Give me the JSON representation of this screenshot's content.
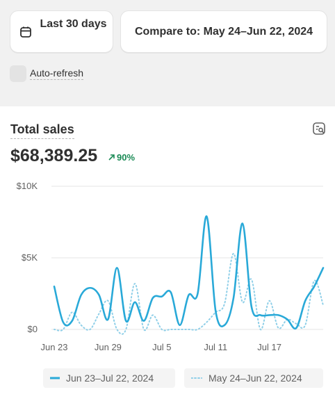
{
  "toolbar": {
    "date_range_label": "Last 30 days",
    "compare_label": "Compare to: May 24–Jun 22, 2024",
    "auto_refresh_label": "Auto-refresh",
    "auto_refresh_checked": false
  },
  "card": {
    "title": "Total sales",
    "total_value": "$68,389.25",
    "change_percent": "90%",
    "change_direction": "up",
    "change_color": "#1a8a55",
    "title_icon": "chart-search-icon"
  },
  "chart_data": {
    "type": "line",
    "ylim": [
      0,
      10000
    ],
    "y_ticks": [
      {
        "value": 0,
        "label": "$0"
      },
      {
        "value": 5000,
        "label": "$5K"
      },
      {
        "value": 10000,
        "label": "$10K"
      }
    ],
    "x_tick_labels": [
      {
        "index": 0,
        "label": "Jun 23"
      },
      {
        "index": 6,
        "label": "Jun 29"
      },
      {
        "index": 12,
        "label": "Jul 5"
      },
      {
        "index": 18,
        "label": "Jul 11"
      },
      {
        "index": 24,
        "label": "Jul 17"
      }
    ],
    "grid": "horizontal",
    "legend_position": "bottom",
    "series": [
      {
        "name": "Jun 23–Jul 22, 2024",
        "style": "solid",
        "color": "#29a9d8",
        "values": [
          3000,
          500,
          600,
          2400,
          2900,
          2400,
          700,
          4300,
          600,
          1900,
          600,
          2200,
          2300,
          2600,
          300,
          2400,
          2500,
          7900,
          1300,
          300,
          2200,
          7400,
          1600,
          1000,
          1000,
          1000,
          700,
          100,
          2000,
          3000,
          4300
        ]
      },
      {
        "name": "May 24–Jun 22, 2024",
        "style": "dotted",
        "color": "#8fcfe8",
        "values": [
          0,
          0,
          1200,
          300,
          0,
          1100,
          2000,
          0,
          0,
          3200,
          0,
          1000,
          0,
          0,
          0,
          0,
          0,
          500,
          1200,
          1800,
          5300,
          1900,
          3500,
          0,
          2000,
          100,
          700,
          400,
          300,
          3400,
          1700
        ]
      }
    ]
  }
}
